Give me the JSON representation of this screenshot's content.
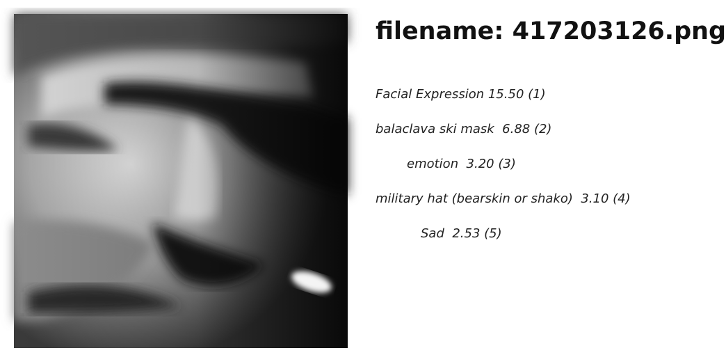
{
  "title": {
    "prefix": "filename: ",
    "filename": "417203126.png"
  },
  "image": {
    "alt": "grayscale close-up photo of a face",
    "icon": "face-photo"
  },
  "labels": [
    {
      "name": "Facial Expression",
      "score": "15.50",
      "rank": "(1)",
      "text": "Facial Expression 15.50 (1)"
    },
    {
      "name": "balaclava ski mask",
      "score": "6.88",
      "rank": "(2)",
      "text": "balaclava ski mask  6.88 (2)"
    },
    {
      "name": "emotion",
      "score": "3.20",
      "rank": "(3)",
      "text": "emotion  3.20 (3)"
    },
    {
      "name": "military hat (bearskin or shako)",
      "score": "3.10",
      "rank": "(4)",
      "text": "military hat (bearskin or shako)  3.10 (4)"
    },
    {
      "name": "Sad",
      "score": "2.53",
      "rank": "(5)",
      "text": "Sad  2.53 (5)"
    }
  ]
}
